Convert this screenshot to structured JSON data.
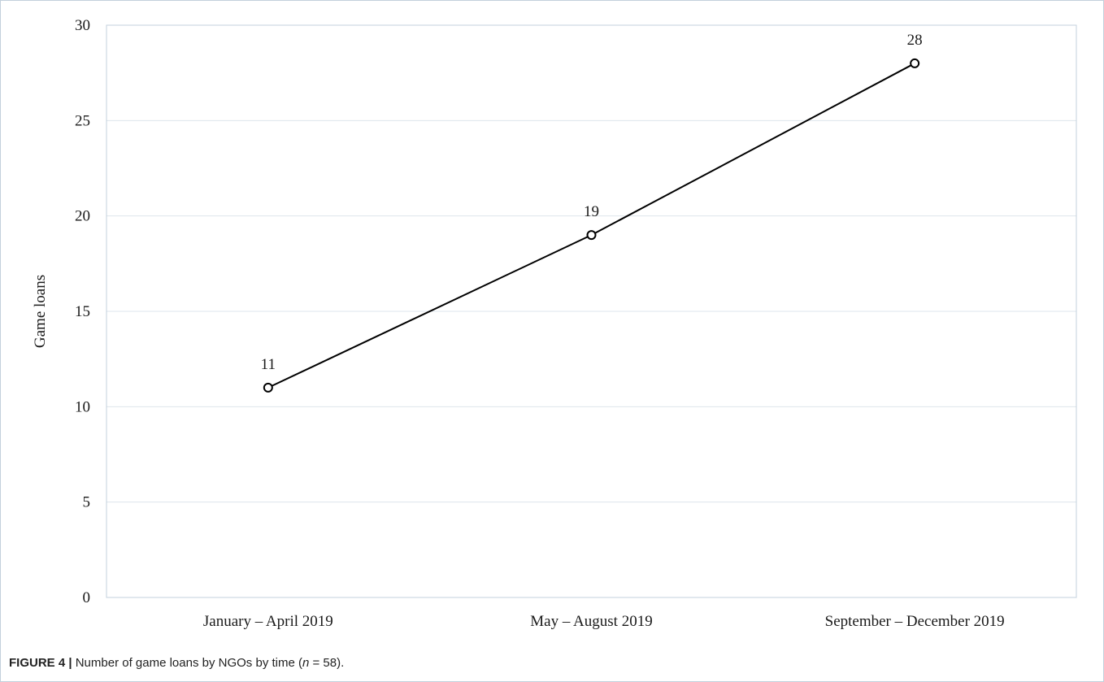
{
  "figure": {
    "label": "FIGURE 4 |",
    "caption_text": "Number of game loans by NGOs by time (",
    "caption_var": "n",
    "caption_rest": " = 58)."
  },
  "chart_data": {
    "type": "line",
    "title": "",
    "xlabel": "",
    "ylabel": "Game loans",
    "categories": [
      "January – April 2019",
      "May – August 2019",
      "September – December 2019"
    ],
    "series": [
      {
        "values": [
          11,
          19,
          28
        ],
        "data_labels": [
          "11",
          "19",
          "28"
        ]
      }
    ],
    "ylim": [
      0,
      30
    ],
    "yticks": [
      0,
      5,
      10,
      15,
      20,
      25,
      30
    ],
    "grid": true,
    "legend": "none",
    "colors": {
      "line": "#000000",
      "marker_fill": "#ffffff",
      "grid": "#dde4ec",
      "plot_border": "#c3d0dc"
    }
  }
}
